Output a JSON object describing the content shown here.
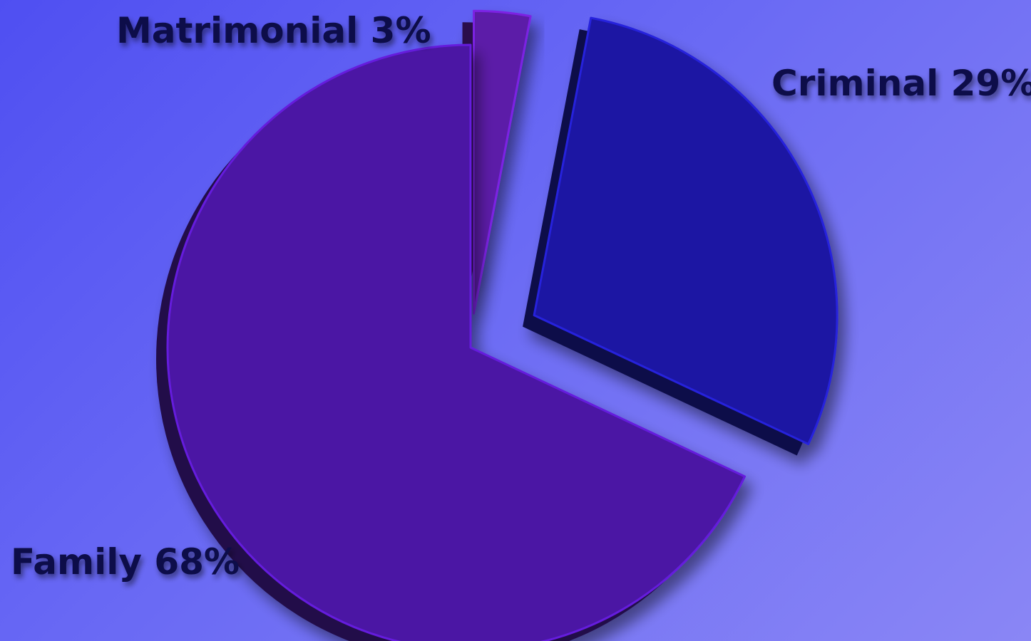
{
  "chart_data": {
    "type": "pie",
    "slices": [
      {
        "label": "Matrimonial 3%",
        "category": "Matrimonial",
        "value": 3,
        "color": "#5c1aa8"
      },
      {
        "label": "Criminal 29%",
        "category": "Criminal",
        "value": 29,
        "color": "#1d19a3"
      },
      {
        "label": "Family 68%",
        "category": "Family",
        "value": 68,
        "color": "#4b16a4"
      }
    ],
    "style": "3d-exploded",
    "background_color": "#5c5cf2"
  }
}
